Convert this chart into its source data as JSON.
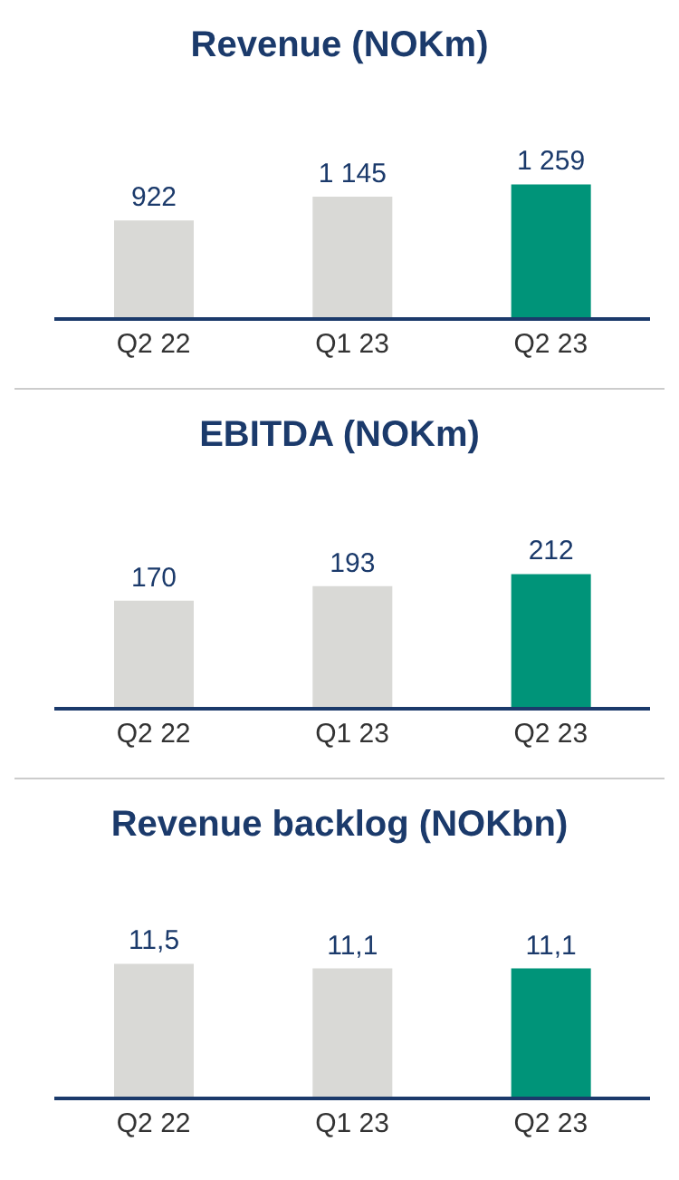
{
  "chart_data": [
    {
      "type": "bar",
      "title": "Revenue (NOKm)",
      "categories": [
        "Q2 22",
        "Q1 23",
        "Q2 23"
      ],
      "values": [
        922,
        1145,
        1259
      ],
      "value_labels": [
        "922",
        "1 145",
        "1 259"
      ],
      "colors": [
        "#d9d9d6",
        "#d9d9d6",
        "#009479"
      ]
    },
    {
      "type": "bar",
      "title": "EBITDA (NOKm)",
      "categories": [
        "Q2 22",
        "Q1 23",
        "Q2 23"
      ],
      "values": [
        170,
        193,
        212
      ],
      "value_labels": [
        "170",
        "193",
        "212"
      ],
      "colors": [
        "#d9d9d6",
        "#d9d9d6",
        "#009479"
      ]
    },
    {
      "type": "bar",
      "title": "Revenue backlog (NOKbn)",
      "categories": [
        "Q2 22",
        "Q1 23",
        "Q2 23"
      ],
      "values": [
        11.5,
        11.1,
        11.1
      ],
      "value_labels": [
        "11,5",
        "11,1",
        "11,1"
      ],
      "colors": [
        "#d9d9d6",
        "#d9d9d6",
        "#009479"
      ]
    }
  ]
}
